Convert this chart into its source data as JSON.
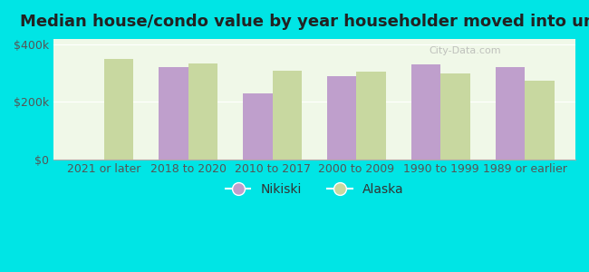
{
  "title": "Median house/condo value by year householder moved into unit",
  "categories": [
    "2021 or later",
    "2018 to 2020",
    "2010 to 2017",
    "2000 to 2009",
    "1990 to 1999",
    "1989 or earlier"
  ],
  "nikiski_values": [
    null,
    320000,
    230000,
    290000,
    330000,
    320000
  ],
  "alaska_values": [
    350000,
    335000,
    310000,
    305000,
    300000,
    275000
  ],
  "nikiski_color": "#bf9fcc",
  "alaska_color": "#c8d8a0",
  "background_color": "#00e5e5",
  "plot_bg_color": "#f0f8e8",
  "ylim": [
    0,
    420000
  ],
  "yticks": [
    0,
    200000,
    400000
  ],
  "ytick_labels": [
    "$0",
    "$200k",
    "$400k"
  ],
  "legend_nikiski": "Nikiski",
  "legend_alaska": "Alaska",
  "bar_width": 0.35,
  "title_fontsize": 13,
  "tick_fontsize": 9,
  "legend_fontsize": 10
}
